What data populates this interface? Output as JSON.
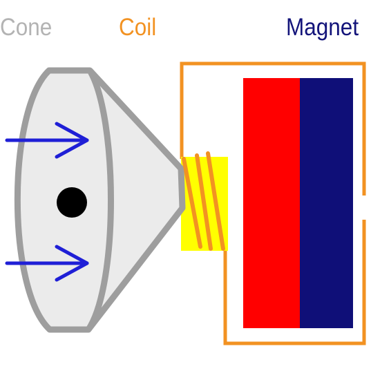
{
  "labels": {
    "cone": "Cone",
    "coil": "Coil",
    "magnet": "Magnet"
  },
  "colors": {
    "cone_label": "#b3b3b3",
    "coil_label": "#f29222",
    "magnet_label": "#13147a",
    "cone_fill": "#ebebeb",
    "cone_outline": "#9e9e9e",
    "arrow": "#1f1fd6",
    "dot": "#000000",
    "coil_core": "#ffff00",
    "coil_wire": "#f29222",
    "housing": "#f29222",
    "magnet_red": "#ff0000",
    "magnet_navy": "#0f0f78"
  },
  "icons": {
    "arrows": "right-arrow",
    "dot": "center-dot"
  }
}
